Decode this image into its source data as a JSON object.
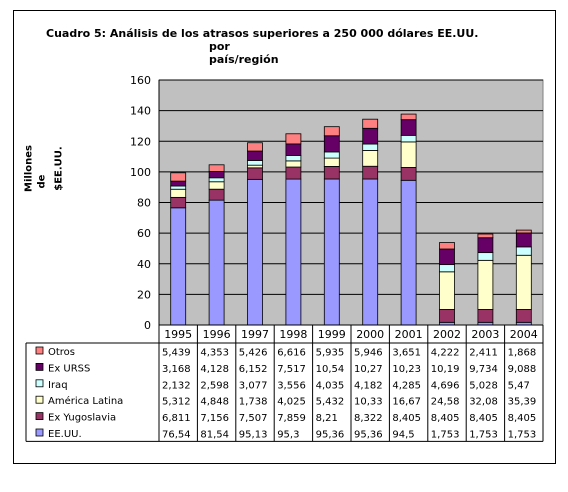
{
  "title": {
    "line1": "Cuadro 5: Análisis de los atrasos superiores a 250 000 dólares EE.UU.",
    "line2": "por",
    "line3": "país/región"
  },
  "ylabel_lines": [
    "Millones",
    "de",
    "$EE.UU."
  ],
  "chart_data": {
    "type": "bar",
    "stacked": true,
    "categories": [
      "1995",
      "1996",
      "1997",
      "1998",
      "1999",
      "2000",
      "2001",
      "2002",
      "2003",
      "2004"
    ],
    "ylim": [
      0,
      160
    ],
    "yticks": [
      0,
      20,
      40,
      60,
      80,
      100,
      120,
      140,
      160
    ],
    "grid": true,
    "legend": "table",
    "series": [
      {
        "name": "EE.UU.",
        "color": "#9999ff",
        "values": [
          76.54,
          81.54,
          95.13,
          95.3,
          95.36,
          95.36,
          94.5,
          1.753,
          1.753,
          1.753
        ],
        "labels": [
          "76,54",
          "81,54",
          "95,13",
          "95,3",
          "95,36",
          "95,36",
          "94,5",
          "1,753",
          "1,753",
          "1,753"
        ]
      },
      {
        "name": "Ex Yugoslavia",
        "color": "#993366",
        "values": [
          6.811,
          7.156,
          7.507,
          7.859,
          8.21,
          8.322,
          8.405,
          8.405,
          8.405,
          8.405
        ],
        "labels": [
          "6,811",
          "7,156",
          "7,507",
          "7,859",
          "8,21",
          "8,322",
          "8,405",
          "8,405",
          "8,405",
          "8,405"
        ]
      },
      {
        "name": "América Latina",
        "color": "#ffffcc",
        "values": [
          5.312,
          4.848,
          1.738,
          4.025,
          5.432,
          10.33,
          16.67,
          24.58,
          32.08,
          35.39
        ],
        "labels": [
          "5,312",
          "4,848",
          "1,738",
          "4,025",
          "5,432",
          "10,33",
          "16,67",
          "24,58",
          "32,08",
          "35,39"
        ]
      },
      {
        "name": "Iraq",
        "color": "#ccffff",
        "values": [
          2.132,
          2.598,
          3.077,
          3.556,
          4.035,
          4.182,
          4.285,
          4.696,
          5.028,
          5.47
        ],
        "labels": [
          "2,132",
          "2,598",
          "3,077",
          "3,556",
          "4,035",
          "4,182",
          "4,285",
          "4,696",
          "5,028",
          "5,47"
        ]
      },
      {
        "name": "Ex URSS",
        "color": "#660066",
        "values": [
          3.168,
          4.128,
          6.152,
          7.517,
          10.54,
          10.27,
          10.23,
          10.19,
          9.734,
          9.088
        ],
        "labels": [
          "3,168",
          "4,128",
          "6,152",
          "7,517",
          "10,54",
          "10,27",
          "10,23",
          "10,19",
          "9,734",
          "9,088"
        ]
      },
      {
        "name": "Otros",
        "color": "#ff8080",
        "values": [
          5.439,
          4.353,
          5.426,
          6.616,
          5.935,
          5.946,
          3.651,
          4.222,
          2.411,
          1.868
        ],
        "labels": [
          "5,439",
          "4,353",
          "5,426",
          "6,616",
          "5,935",
          "5,946",
          "3,651",
          "4,222",
          "2,411",
          "1,868"
        ]
      }
    ]
  }
}
